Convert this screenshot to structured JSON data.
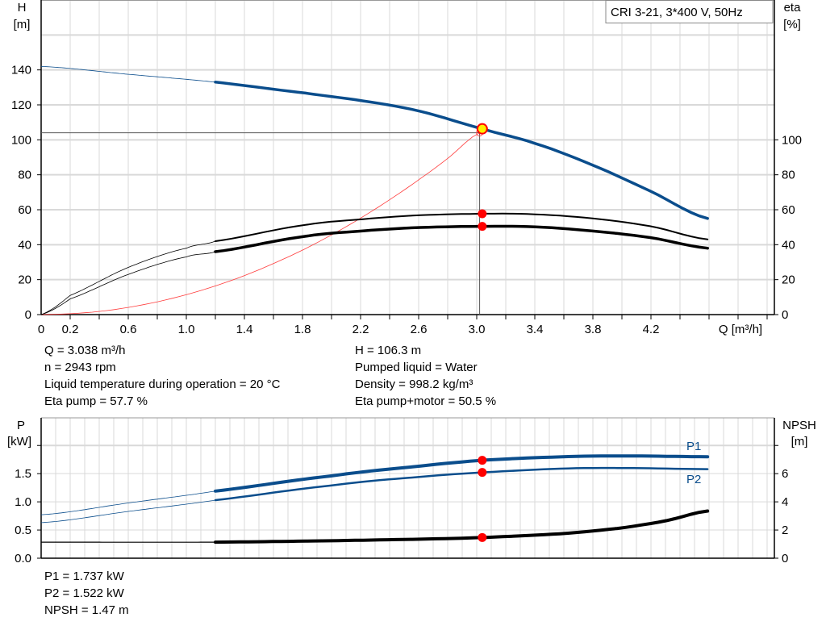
{
  "legend": {
    "label": "CRI 3-21, 3*400 V, 50Hz"
  },
  "colors": {
    "head": "#0a4d8c",
    "power": "#0a4d8c",
    "eta": "#000000",
    "npsh": "#000000",
    "system": "#ff3b3b",
    "duty_point": "#ff0000",
    "operating_fill": "#ffee00",
    "grid": "#d9d9d9"
  },
  "chart_data": [
    {
      "type": "line",
      "xlabel": "Q [m³/h]",
      "ylabel": "H [m]",
      "ylabel_lines": [
        "H",
        "[m]"
      ],
      "y2label_lines": [
        "eta",
        "[%]"
      ],
      "xlim": [
        0,
        5.05
      ],
      "ylim": [
        0,
        180
      ],
      "y2lim": [
        0,
        180
      ],
      "x_ticks": [
        0,
        0.2,
        0.6,
        1.0,
        1.4,
        1.8,
        2.2,
        2.6,
        3.0,
        3.4,
        3.8,
        4.2
      ],
      "x_tick_labels": [
        "0",
        "0.2",
        "0.6",
        "1.0",
        "1.4",
        "1.8",
        "2.2",
        "2.6",
        "3.0",
        "3.4",
        "3.8",
        "4.2"
      ],
      "y_ticks": [
        0,
        20,
        40,
        60,
        80,
        100,
        120,
        140
      ],
      "y2_ticks": [
        0,
        20,
        40,
        60,
        80,
        100
      ],
      "grid": true,
      "legend_position": "top-right",
      "series": [
        {
          "key": "head",
          "axis": "left",
          "thick_from": 1.2,
          "x": [
            0,
            0.6,
            1.2,
            1.8,
            2.2,
            2.6,
            3.038,
            3.4,
            3.8,
            4.2,
            4.59
          ],
          "y": [
            142,
            137.5,
            133,
            127,
            122.5,
            116.5,
            106.3,
            98,
            85.5,
            70.5,
            55
          ]
        },
        {
          "key": "eta_pump",
          "axis": "right",
          "thick_from": 1.2,
          "x": [
            0,
            0.2,
            0.6,
            1.0,
            1.2,
            1.8,
            2.2,
            2.6,
            3.038,
            3.4,
            3.8,
            4.2,
            4.59
          ],
          "y": [
            0,
            11,
            27,
            38,
            42,
            51,
            54.5,
            56.8,
            57.7,
            57.4,
            55,
            50.5,
            43
          ]
        },
        {
          "key": "eta_pump_motor",
          "axis": "right",
          "thick_from": 1.2,
          "x": [
            0,
            0.2,
            0.6,
            1.0,
            1.2,
            1.8,
            2.2,
            2.6,
            3.038,
            3.4,
            3.8,
            4.2,
            4.59
          ],
          "y": [
            0,
            9,
            23,
            33,
            36,
            44.5,
            47.8,
            49.8,
            50.5,
            50.2,
            47.8,
            44,
            38
          ]
        },
        {
          "key": "system",
          "axis": "left",
          "x": [
            0,
            0.2,
            0.4,
            0.6,
            0.8,
            1.0,
            1.2,
            1.4,
            1.6,
            1.8,
            2.0,
            2.2,
            2.4,
            2.6,
            2.8,
            3.02
          ],
          "y": [
            0,
            0.5,
            1.8,
            4.1,
            7.3,
            11.4,
            16.4,
            22.3,
            29.2,
            36.9,
            45.6,
            55.2,
            65.7,
            77.1,
            89.4,
            104
          ]
        }
      ],
      "operating_point": {
        "x": 3.038,
        "y": 106.3
      },
      "duty_points": [
        {
          "x": 3.038,
          "y": 57.7
        },
        {
          "x": 3.038,
          "y": 50.5
        }
      ],
      "crosshair": {
        "x": 3.02,
        "y": 104
      }
    },
    {
      "type": "line",
      "ylabel_lines": [
        "P",
        "[kW]"
      ],
      "y2label_lines": [
        "NPSH",
        "[m]"
      ],
      "xlim": [
        0,
        5.05
      ],
      "ylim": [
        0,
        2.49
      ],
      "y2lim": [
        0,
        9.96
      ],
      "y_ticks": [
        0,
        0.5,
        1.0,
        1.5,
        2.0
      ],
      "y_tick_labels": [
        "0.0",
        "0.5",
        "1.0",
        "1.5",
        ""
      ],
      "y2_ticks": [
        0,
        2,
        4,
        6,
        8
      ],
      "y2_tick_labels": [
        "0",
        "2",
        "4",
        "6",
        ""
      ],
      "grid": true,
      "series": [
        {
          "key": "p1",
          "name": "P1",
          "axis": "left",
          "thick_from": 1.2,
          "x": [
            0,
            0.6,
            1.2,
            2.0,
            2.6,
            3.038,
            3.6,
            4.0,
            4.59
          ],
          "y": [
            0.77,
            0.98,
            1.19,
            1.46,
            1.63,
            1.737,
            1.8,
            1.815,
            1.8
          ]
        },
        {
          "key": "p2",
          "name": "P2",
          "axis": "left",
          "thick_from": 1.2,
          "x": [
            0,
            0.6,
            1.2,
            2.0,
            2.6,
            3.038,
            3.6,
            4.0,
            4.59
          ],
          "y": [
            0.63,
            0.83,
            1.03,
            1.29,
            1.44,
            1.522,
            1.59,
            1.6,
            1.58
          ]
        },
        {
          "key": "npsh",
          "axis": "right",
          "thick_from": 1.2,
          "x": [
            0,
            1.2,
            2.0,
            2.6,
            3.038,
            3.6,
            4.0,
            4.3,
            4.59
          ],
          "y": [
            1.14,
            1.14,
            1.24,
            1.35,
            1.47,
            1.75,
            2.15,
            2.65,
            3.35
          ]
        }
      ],
      "duty_points": [
        {
          "x": 3.038,
          "y": 1.737,
          "axis": "left"
        },
        {
          "x": 3.038,
          "y": 1.522,
          "axis": "left"
        },
        {
          "x": 3.038,
          "y": 1.47,
          "axis": "right"
        }
      ]
    }
  ],
  "info_top": {
    "left": [
      "Q = 3.038 m³/h",
      "n = 2943 rpm",
      "Liquid temperature during operation = 20 °C",
      "Eta pump = 57.7 %"
    ],
    "right": [
      "H = 106.3 m",
      "Pumped liquid = Water",
      "Density = 998.2 kg/m³",
      "Eta pump+motor = 50.5 %"
    ]
  },
  "info_bottom": [
    "P1 = 1.737 kW",
    "P2 = 1.522 kW",
    "NPSH = 1.47 m"
  ]
}
